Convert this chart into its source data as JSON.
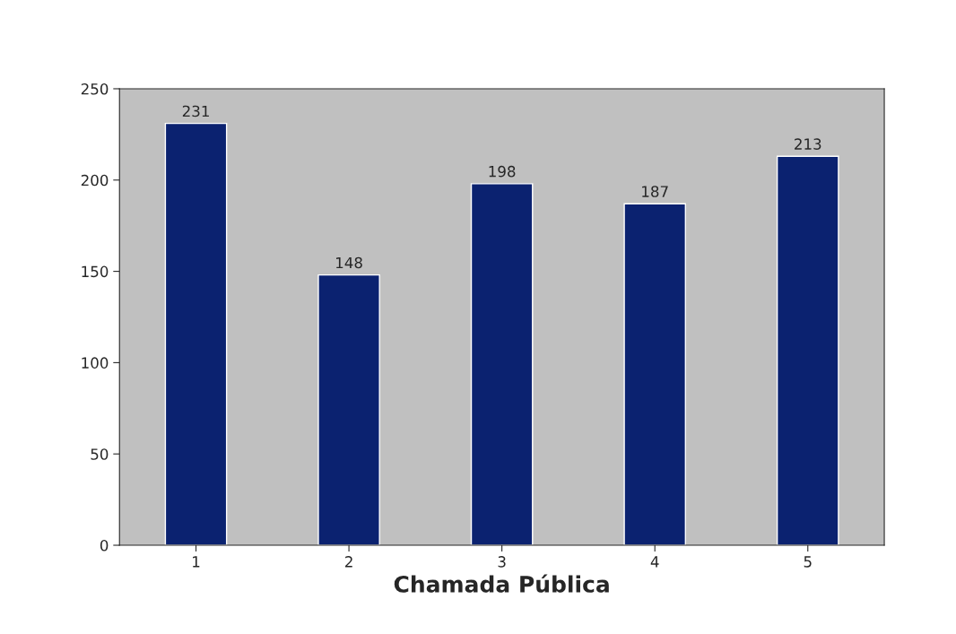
{
  "chart_data": {
    "type": "bar",
    "xlabel": "Chamada Pública",
    "categories": [
      "1",
      "2",
      "3",
      "4",
      "5"
    ],
    "values": [
      231,
      148,
      198,
      187,
      213
    ],
    "color": "#0b2270",
    "ylim": [
      0,
      250
    ],
    "yticks": [
      0,
      50,
      100,
      150,
      200,
      250
    ],
    "data_labels": true,
    "grid": false,
    "legend": false
  }
}
